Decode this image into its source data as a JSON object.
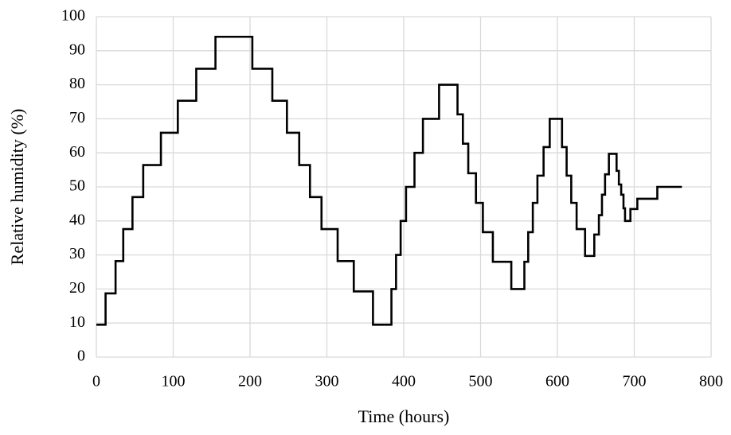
{
  "chart_data": {
    "type": "line",
    "x_label": "Time (hours)",
    "y_label": "Relative humidity (%)",
    "xlim": [
      0,
      800
    ],
    "xticks": [
      0,
      100,
      200,
      300,
      400,
      500,
      600,
      700,
      800
    ],
    "ylim": [
      0,
      100
    ],
    "yticks": [
      0,
      10,
      20,
      30,
      40,
      50,
      60,
      70,
      80,
      90,
      100
    ],
    "grid": true,
    "x": [
      0,
      12,
      12,
      25,
      25,
      35,
      35,
      47,
      47,
      61,
      61,
      84,
      84,
      106,
      106,
      130,
      130,
      155,
      155,
      203,
      203,
      229,
      229,
      248,
      248,
      264,
      264,
      278,
      278,
      293,
      293,
      314,
      314,
      335,
      335,
      360,
      360,
      384,
      384,
      390,
      390,
      396,
      396,
      403,
      403,
      414,
      414,
      425,
      425,
      446,
      446,
      470,
      470,
      477,
      477,
      484,
      484,
      494,
      494,
      503,
      503,
      516,
      516,
      540,
      540,
      557,
      557,
      562,
      562,
      568,
      568,
      574,
      574,
      582,
      582,
      590,
      590,
      606,
      606,
      612,
      612,
      618,
      618,
      625,
      625,
      636,
      636,
      648,
      648,
      654,
      654,
      658,
      658,
      662,
      662,
      667,
      667,
      677,
      677,
      680,
      680,
      683,
      683,
      686,
      686,
      688,
      688,
      695,
      695,
      704,
      704,
      730,
      730,
      762
    ],
    "series": [
      {
        "color": "#000000",
        "values": [
          9.5,
          9.5,
          18.7,
          18.7,
          28.2,
          28.2,
          37.6,
          37.6,
          47,
          47,
          56.4,
          56.4,
          65.9,
          65.9,
          75.3,
          75.3,
          84.7,
          84.7,
          94.1,
          94.1,
          84.7,
          84.7,
          75.3,
          75.3,
          65.9,
          65.9,
          56.4,
          56.4,
          47,
          47,
          37.6,
          37.6,
          28.2,
          28.2,
          19.3,
          19.3,
          9.5,
          9.5,
          20,
          20,
          30,
          30,
          40,
          40,
          50,
          50,
          60,
          60,
          70,
          70,
          80,
          80,
          71.3,
          71.3,
          62.7,
          62.7,
          54,
          54,
          45.3,
          45.3,
          36.7,
          36.7,
          28,
          28,
          20,
          20,
          28,
          28,
          36.7,
          36.7,
          45.3,
          45.3,
          53.3,
          53.3,
          61.7,
          61.7,
          70,
          70,
          61.7,
          61.7,
          53.3,
          53.3,
          45.3,
          45.3,
          37.6,
          37.6,
          29.7,
          29.7,
          36,
          36,
          41.7,
          41.7,
          47.7,
          47.7,
          53.7,
          53.7,
          59.7,
          59.7,
          54.7,
          54.7,
          50.7,
          50.7,
          47.7,
          47.7,
          43.7,
          43.7,
          40,
          40,
          43.5,
          43.5,
          46.5,
          46.5,
          50,
          50
        ]
      }
    ]
  }
}
